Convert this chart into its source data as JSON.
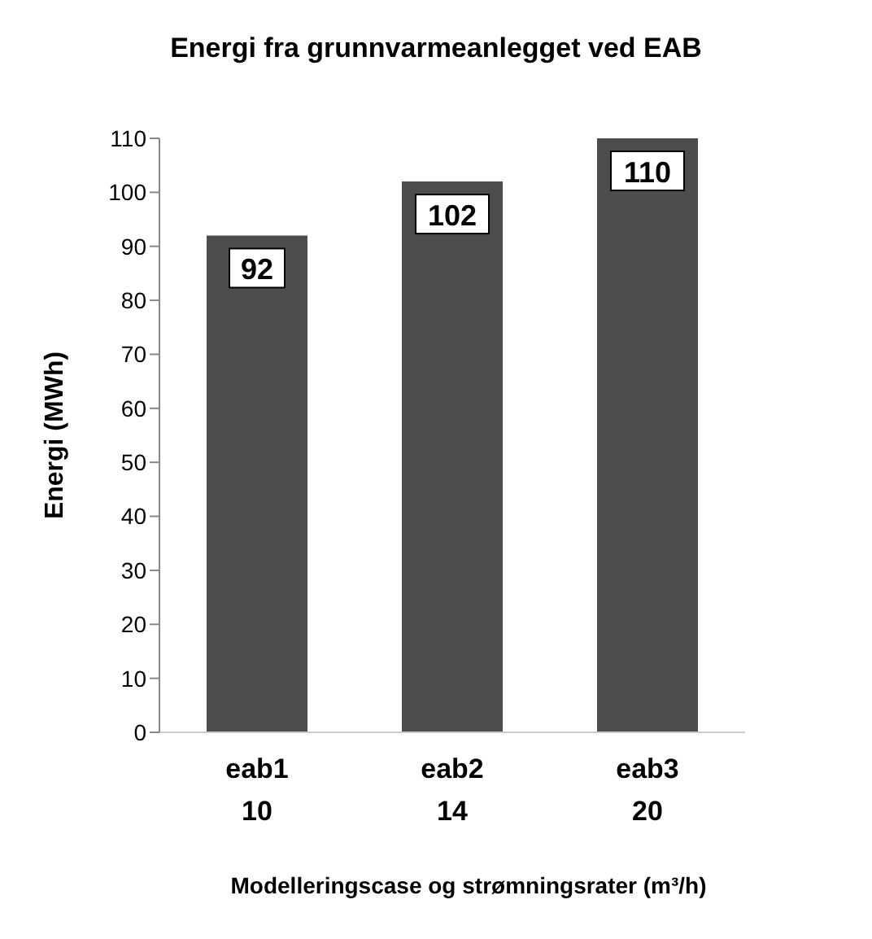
{
  "chart_data": {
    "type": "bar",
    "title": "Energi fra grunnvarmeanlegget ved EAB",
    "xlabel": "Modelleringscase og strømningsrater (m³/h)",
    "ylabel": "Energi (MWh)",
    "categories": [
      "eab1\n10",
      "eab2\n14",
      "eab3\n20"
    ],
    "values": [
      92,
      102,
      110
    ],
    "color": "#4d4d4d",
    "ylim": [
      0,
      110
    ],
    "yticks": [
      0,
      10,
      20,
      30,
      40,
      50,
      60,
      70,
      80,
      90,
      100,
      110
    ],
    "grid": false,
    "data_labels": true
  }
}
